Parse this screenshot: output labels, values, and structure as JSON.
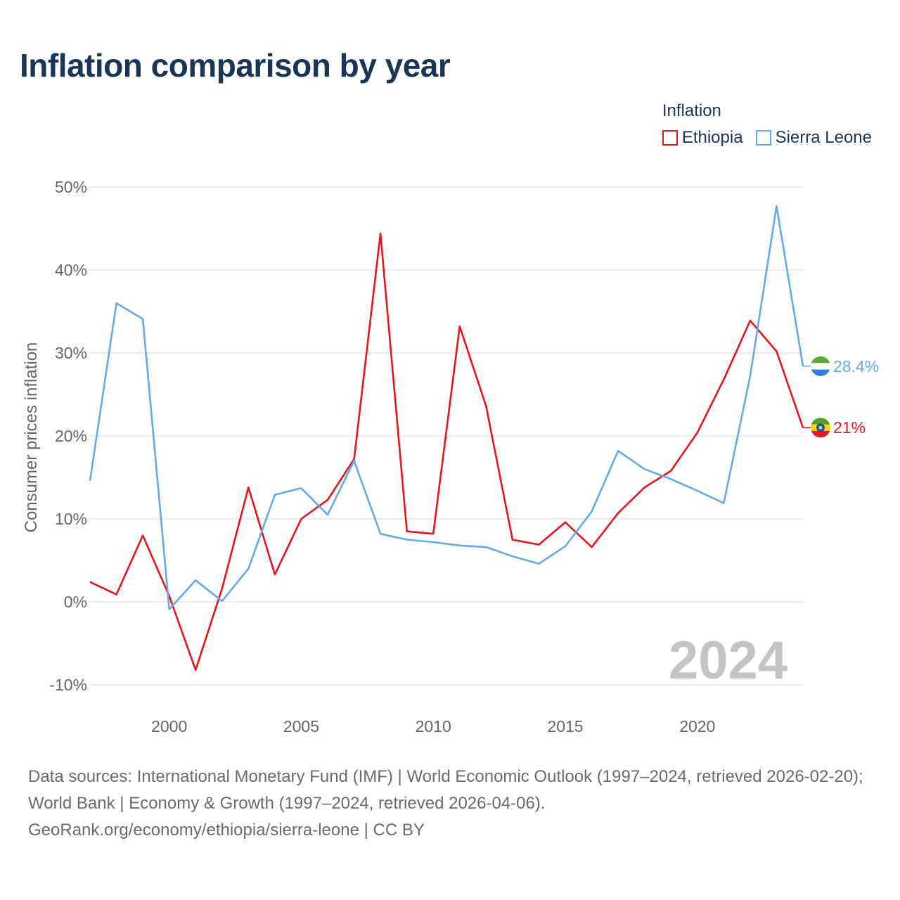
{
  "title": "Inflation comparison by year",
  "legend": {
    "title": "Inflation",
    "items": [
      {
        "name": "Ethiopia",
        "color": "#e8141c"
      },
      {
        "name": "Sierra Leone",
        "color": "#64aae8"
      }
    ]
  },
  "footer": {
    "line1": "Data sources: International Monetary Fund (IMF) | World Economic Outlook (1997–2024, retrieved 2026-02-20); World Bank | Economy & Growth (1997–2024, retrieved 2026-04-06).",
    "line2": "GeoRank.org/economy/ethiopia/sierra-leone | CC BY"
  },
  "chart_data": {
    "type": "line",
    "title": "Inflation comparison by year",
    "xlabel": "",
    "ylabel": "Consumer prices inflation",
    "xlim": [
      1997,
      2024
    ],
    "ylim": [
      -10,
      50
    ],
    "yticks": [
      -10,
      0,
      10,
      20,
      30,
      40,
      50
    ],
    "ytick_labels": [
      "-10%",
      "0%",
      "10%",
      "20%",
      "30%",
      "40%",
      "50%"
    ],
    "xticks": [
      2000,
      2005,
      2010,
      2015,
      2020
    ],
    "xtick_labels": [
      "2000",
      "2005",
      "2010",
      "2015",
      "2020"
    ],
    "watermark_year": "2024",
    "grid": true,
    "x": [
      1997,
      1998,
      1999,
      2000,
      2001,
      2002,
      2003,
      2004,
      2005,
      2006,
      2007,
      2008,
      2009,
      2010,
      2011,
      2012,
      2013,
      2014,
      2015,
      2016,
      2017,
      2018,
      2019,
      2020,
      2021,
      2022,
      2023,
      2024
    ],
    "series": [
      {
        "name": "Ethiopia",
        "color": "#e8141c",
        "end_label": "21%",
        "values": [
          2.4,
          0.9,
          8.0,
          0.7,
          -8.2,
          1.6,
          13.8,
          3.3,
          10.0,
          12.3,
          17.2,
          44.4,
          8.5,
          8.2,
          33.2,
          23.6,
          7.5,
          6.9,
          9.6,
          6.6,
          10.7,
          13.8,
          15.8,
          20.4,
          26.8,
          33.9,
          30.2,
          21.0
        ]
      },
      {
        "name": "Sierra Leone",
        "color": "#64aae8",
        "end_label": "28.4%",
        "values": [
          14.6,
          36.0,
          34.1,
          -0.9,
          2.6,
          0.1,
          4.0,
          12.9,
          13.7,
          10.5,
          17.0,
          8.2,
          7.5,
          7.2,
          6.8,
          6.6,
          5.5,
          4.6,
          6.7,
          10.9,
          18.2,
          16.0,
          14.8,
          13.4,
          11.9,
          27.2,
          47.7,
          28.4
        ]
      }
    ]
  }
}
